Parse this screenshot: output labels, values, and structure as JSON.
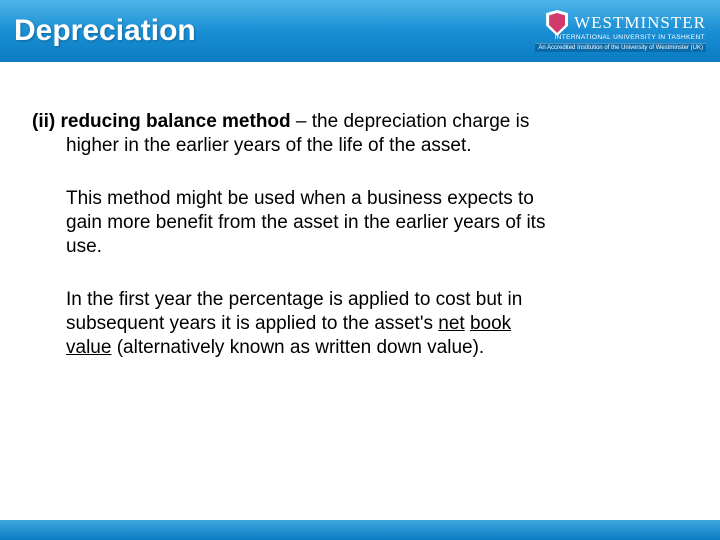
{
  "header": {
    "title": "Depreciation",
    "logo_name": "WESTMINSTER",
    "logo_sub": "INTERNATIONAL UNIVERSITY IN TASHKENT",
    "logo_cred": "An Accredited Institution of the University of Westminster (UK)"
  },
  "body": {
    "p1_lead": "(ii) reducing balance method",
    "p1_rest_a": " – the depreciation charge is",
    "p1_rest_b": "higher in the earlier years of the life of the asset.",
    "p2_a": "This method might be used when a business expects to",
    "p2_b": "gain more benefit from the asset in the earlier years of its",
    "p2_c": "use.",
    "p3_a": "In the first year the percentage is applied to cost but in",
    "p3_b": "subsequent years it is applied to the asset's ",
    "p3_u1": "net",
    "p3_sp": " ",
    "p3_u2": "book",
    "p3_c": "value",
    "p3_d": " (alternatively known as written down value)."
  },
  "colors": {
    "header_gradient_top": "#4db4e8",
    "header_gradient_bottom": "#0b7bc3",
    "text": "#000000",
    "title": "#ffffff"
  }
}
